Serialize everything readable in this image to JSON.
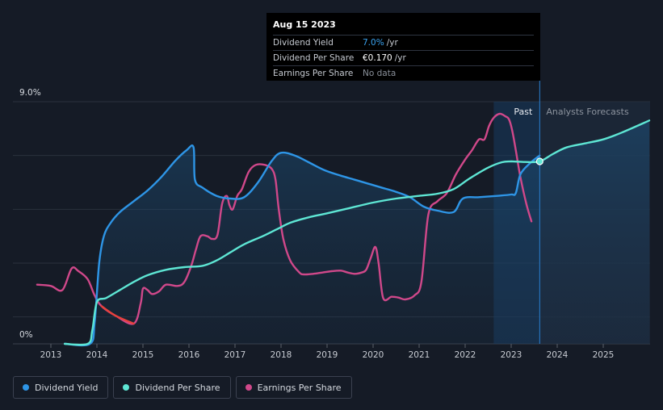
{
  "chart_data": {
    "type": "line",
    "title": "",
    "xlabel": "",
    "ylabel": "",
    "x_ticks": [
      "2013",
      "2014",
      "2015",
      "2016",
      "2017",
      "2018",
      "2019",
      "2020",
      "2021",
      "2022",
      "2023",
      "2024",
      "2025"
    ],
    "xlim": [
      2012.7,
      2026.0
    ],
    "ylim": [
      0,
      9.0
    ],
    "y_axis_labels": {
      "top": "9.0%",
      "bottom": "0%"
    },
    "regions": {
      "past_label": "Past",
      "forecast_label": "Analysts Forecasts",
      "divider_x": 2023.62,
      "shade_start_x": 2022.62
    },
    "series": [
      {
        "name": "Dividend Yield",
        "color": "#2e95e6",
        "points": [
          [
            2013.3,
            0
          ],
          [
            2013.85,
            0
          ],
          [
            2013.95,
            0.8
          ],
          [
            2014.05,
            3.0
          ],
          [
            2014.15,
            4.0
          ],
          [
            2014.3,
            4.5
          ],
          [
            2014.5,
            4.9
          ],
          [
            2014.8,
            5.3
          ],
          [
            2015.1,
            5.7
          ],
          [
            2015.4,
            6.2
          ],
          [
            2015.7,
            6.8
          ],
          [
            2015.95,
            7.2
          ],
          [
            2016.1,
            7.3
          ],
          [
            2016.13,
            6.1
          ],
          [
            2016.3,
            5.8
          ],
          [
            2016.6,
            5.5
          ],
          [
            2016.9,
            5.4
          ],
          [
            2017.2,
            5.45
          ],
          [
            2017.5,
            6.0
          ],
          [
            2017.8,
            6.8
          ],
          [
            2018.0,
            7.1
          ],
          [
            2018.3,
            7.0
          ],
          [
            2018.6,
            6.75
          ],
          [
            2018.95,
            6.45
          ],
          [
            2019.3,
            6.25
          ],
          [
            2019.6,
            6.1
          ],
          [
            2019.9,
            5.95
          ],
          [
            2020.2,
            5.8
          ],
          [
            2020.5,
            5.65
          ],
          [
            2020.8,
            5.45
          ],
          [
            2021.1,
            5.1
          ],
          [
            2021.4,
            4.95
          ],
          [
            2021.75,
            4.9
          ],
          [
            2021.95,
            5.4
          ],
          [
            2022.3,
            5.45
          ],
          [
            2022.7,
            5.5
          ],
          [
            2023.0,
            5.55
          ],
          [
            2023.1,
            5.6
          ],
          [
            2023.2,
            6.3
          ],
          [
            2023.4,
            6.7
          ],
          [
            2023.62,
            7.0
          ]
        ]
      },
      {
        "name": "Dividend Per Share",
        "color": "#5ee6d4",
        "points": [
          [
            2013.3,
            0
          ],
          [
            2013.8,
            0
          ],
          [
            2013.9,
            0.5
          ],
          [
            2014.0,
            1.55
          ],
          [
            2014.2,
            1.7
          ],
          [
            2014.5,
            2.0
          ],
          [
            2014.8,
            2.3
          ],
          [
            2015.1,
            2.55
          ],
          [
            2015.5,
            2.75
          ],
          [
            2015.9,
            2.85
          ],
          [
            2016.3,
            2.9
          ],
          [
            2016.6,
            3.1
          ],
          [
            2016.9,
            3.4
          ],
          [
            2017.2,
            3.7
          ],
          [
            2017.6,
            4.0
          ],
          [
            2017.9,
            4.25
          ],
          [
            2018.2,
            4.5
          ],
          [
            2018.6,
            4.7
          ],
          [
            2019.0,
            4.85
          ],
          [
            2019.5,
            5.05
          ],
          [
            2020.0,
            5.25
          ],
          [
            2020.5,
            5.4
          ],
          [
            2021.0,
            5.5
          ],
          [
            2021.4,
            5.58
          ],
          [
            2021.75,
            5.75
          ],
          [
            2022.1,
            6.15
          ],
          [
            2022.5,
            6.55
          ],
          [
            2022.8,
            6.75
          ],
          [
            2023.0,
            6.78
          ],
          [
            2023.3,
            6.76
          ],
          [
            2023.62,
            6.78
          ],
          [
            2023.9,
            7.05
          ],
          [
            2024.2,
            7.3
          ],
          [
            2024.6,
            7.45
          ],
          [
            2025.0,
            7.6
          ],
          [
            2025.4,
            7.85
          ],
          [
            2026.0,
            8.3
          ]
        ]
      },
      {
        "name": "Earnings Per Share",
        "color": "#d0488a",
        "points": [
          [
            2012.7,
            2.2
          ],
          [
            2013.0,
            2.15
          ],
          [
            2013.25,
            2.0
          ],
          [
            2013.45,
            2.8
          ],
          [
            2013.6,
            2.7
          ],
          [
            2013.8,
            2.4
          ],
          [
            2013.95,
            1.8
          ],
          [
            2014.1,
            1.4
          ],
          [
            2014.4,
            1.05
          ],
          [
            2014.8,
            0.75
          ],
          [
            2014.95,
            1.5
          ],
          [
            2015.0,
            2.05
          ],
          [
            2015.1,
            2.0
          ],
          [
            2015.2,
            1.85
          ],
          [
            2015.35,
            1.95
          ],
          [
            2015.5,
            2.2
          ],
          [
            2015.75,
            2.15
          ],
          [
            2015.9,
            2.3
          ],
          [
            2016.05,
            2.9
          ],
          [
            2016.15,
            3.5
          ],
          [
            2016.25,
            4.0
          ],
          [
            2016.4,
            4.0
          ],
          [
            2016.5,
            3.9
          ],
          [
            2016.62,
            4.05
          ],
          [
            2016.72,
            5.2
          ],
          [
            2016.82,
            5.5
          ],
          [
            2016.88,
            5.15
          ],
          [
            2016.95,
            5.0
          ],
          [
            2017.05,
            5.5
          ],
          [
            2017.15,
            5.75
          ],
          [
            2017.3,
            6.4
          ],
          [
            2017.45,
            6.65
          ],
          [
            2017.65,
            6.65
          ],
          [
            2017.8,
            6.5
          ],
          [
            2017.88,
            6.1
          ],
          [
            2017.95,
            5.0
          ],
          [
            2018.05,
            3.9
          ],
          [
            2018.2,
            3.1
          ],
          [
            2018.4,
            2.65
          ],
          [
            2018.5,
            2.58
          ],
          [
            2018.7,
            2.6
          ],
          [
            2018.9,
            2.65
          ],
          [
            2019.1,
            2.7
          ],
          [
            2019.3,
            2.72
          ],
          [
            2019.45,
            2.65
          ],
          [
            2019.6,
            2.6
          ],
          [
            2019.75,
            2.65
          ],
          [
            2019.85,
            2.75
          ],
          [
            2019.95,
            3.2
          ],
          [
            2020.05,
            3.6
          ],
          [
            2020.12,
            3.0
          ],
          [
            2020.22,
            1.7
          ],
          [
            2020.4,
            1.75
          ],
          [
            2020.55,
            1.72
          ],
          [
            2020.7,
            1.65
          ],
          [
            2020.9,
            1.8
          ],
          [
            2021.05,
            2.3
          ],
          [
            2021.2,
            4.8
          ],
          [
            2021.4,
            5.3
          ],
          [
            2021.6,
            5.6
          ],
          [
            2021.8,
            6.3
          ],
          [
            2022.0,
            6.85
          ],
          [
            2022.15,
            7.2
          ],
          [
            2022.3,
            7.6
          ],
          [
            2022.42,
            7.6
          ],
          [
            2022.52,
            8.1
          ],
          [
            2022.62,
            8.4
          ],
          [
            2022.75,
            8.55
          ],
          [
            2022.88,
            8.45
          ],
          [
            2022.95,
            8.35
          ],
          [
            2023.02,
            7.95
          ],
          [
            2023.1,
            7.2
          ],
          [
            2023.2,
            6.2
          ],
          [
            2023.33,
            5.2
          ],
          [
            2023.44,
            4.55
          ]
        ]
      }
    ],
    "highlight_segment": {
      "color": "#e8413c",
      "x_range": [
        2014.05,
        2014.85
      ]
    },
    "hover_point": {
      "x": 2023.62,
      "y": 6.78
    }
  },
  "tooltip": {
    "date": "Aug 15 2023",
    "rows": [
      {
        "label": "Dividend Yield",
        "value": "7.0%",
        "unit": "/yr"
      },
      {
        "label": "Dividend Per Share",
        "value": "€0.170",
        "unit": "/yr"
      },
      {
        "label": "Earnings Per Share",
        "value": "No data",
        "unit": ""
      }
    ]
  },
  "legend": [
    {
      "label": "Dividend Yield",
      "color": "#2e95e6"
    },
    {
      "label": "Dividend Per Share",
      "color": "#5ee6d4"
    },
    {
      "label": "Earnings Per Share",
      "color": "#d0488a"
    }
  ]
}
